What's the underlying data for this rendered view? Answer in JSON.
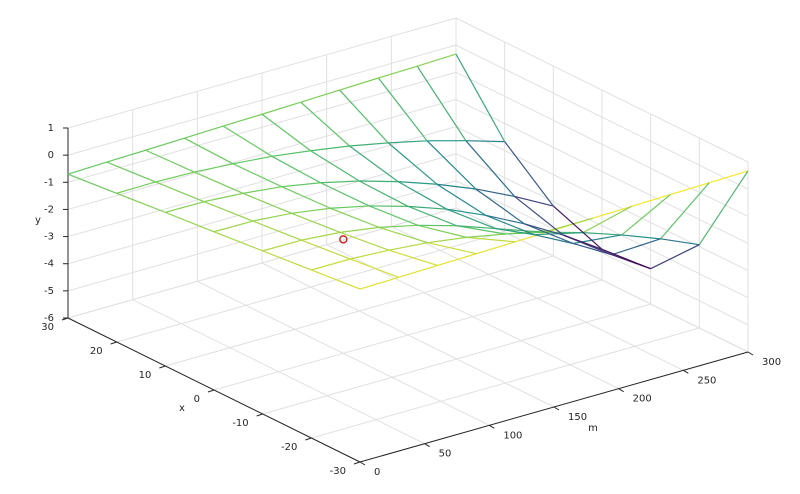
{
  "chart_data": {
    "type": "surface",
    "x_label": "x",
    "m_label": "m",
    "z_label": "y",
    "x": [
      -30,
      -20,
      -10,
      0,
      10,
      20,
      30
    ],
    "m": [
      0,
      30,
      60,
      90,
      120,
      150,
      180,
      210,
      240,
      270,
      300
    ],
    "z": [
      [
        0.37,
        0.4,
        0.43,
        0.46,
        0.49,
        0.52,
        0.55,
        0.58,
        0.61,
        0.64,
        0.67
      ],
      [
        0.19,
        0.19,
        0.11,
        -0.02,
        -0.23,
        -0.51,
        -0.85,
        -1.27,
        -1.76,
        -2.31,
        -2.93
      ],
      [
        0.01,
        0,
        -0.12,
        -0.34,
        -0.67,
        -1.09,
        -1.6,
        -2.23,
        -2.96,
        -3.78,
        -4.7
      ],
      [
        -0.17,
        -0.18,
        -0.3,
        -0.52,
        -0.84,
        -1.26,
        -1.77,
        -2.4,
        -3.12,
        -3.94,
        -4.87
      ],
      [
        -0.34,
        -0.35,
        -0.45,
        -0.61,
        -0.87,
        -1.21,
        -1.64,
        -2.14,
        -2.72,
        -3.4,
        -4.16
      ],
      [
        -0.52,
        -0.51,
        -0.55,
        -0.65,
        -0.78,
        -0.98,
        -1.21,
        -1.5,
        -1.83,
        -2.23,
        -2.67
      ],
      [
        -0.7,
        -0.66,
        -0.63,
        -0.59,
        -0.55,
        -0.52,
        -0.48,
        -0.44,
        -0.4,
        -0.37,
        -0.33
      ]
    ],
    "xlim": [
      -30,
      30
    ],
    "xticks": [
      -30,
      -20,
      -10,
      0,
      10,
      20,
      30
    ],
    "mlim": [
      0,
      300
    ],
    "mticks": [
      0,
      50,
      100,
      150,
      200,
      250,
      300
    ],
    "zlim": [
      -6,
      1
    ],
    "zticks": [
      -6,
      -5,
      -4,
      -3,
      -2,
      -1,
      0,
      1
    ],
    "grid": true,
    "colormap": [
      "#440154",
      "#3b528b",
      "#21918c",
      "#5ec962",
      "#fde725"
    ],
    "marker": {
      "x": 0,
      "m": 100,
      "z": -1.8,
      "color": "#d62728"
    }
  }
}
